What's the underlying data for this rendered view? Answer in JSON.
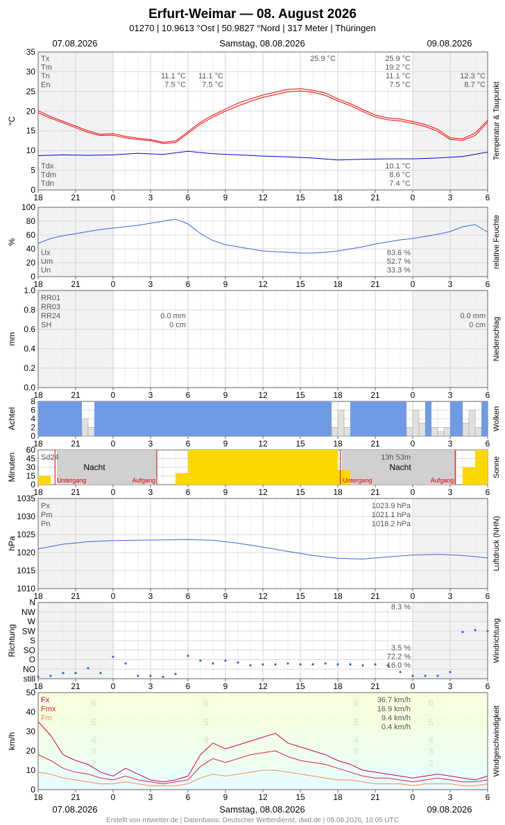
{
  "header": {
    "title": "Erfurt-Weimar  —  08. August 2026",
    "subtitle": "01270  |  10.9613 °Ost  |  50.9827 °Nord  |  317 Meter  |  Thüringen",
    "date_prev": "07.08.2026",
    "date_main": "Samstag, 08.08.2026",
    "date_next": "09.08.2026"
  },
  "footer": "Erstellt von mtwetter.de | Datenbasis: Deutscher Wetterdienst, dwd.de | 09.08.2026, 10:05 UTC",
  "x_hours": [
    "18",
    "21",
    "0",
    "3",
    "6",
    "9",
    "12",
    "15",
    "18",
    "21",
    "0",
    "3",
    "6"
  ],
  "colors": {
    "frame": "#666666",
    "grid": "#dddddd",
    "night": "#f2f2f2",
    "temp": "#ee0000",
    "dew": "#0000cc",
    "humid": "#3366dd",
    "cloud": "#6f9be6",
    "sun": "#ffd700",
    "pressure": "#3366dd",
    "dir": "#3366dd",
    "fx": "#cc0066",
    "fmx": "#dd2244",
    "fm": "#ff8844"
  },
  "chart_data": [
    {
      "id": "temp",
      "type": "line",
      "ylabel": "°C",
      "side_label": "Temperatur & Taupunkt",
      "ylim": [
        0,
        35
      ],
      "yticks": [
        "0",
        "5",
        "10",
        "15",
        "20",
        "25",
        "30",
        "35"
      ],
      "series": [
        {
          "name": "Tx",
          "x": [
            18,
            19,
            20,
            21,
            22,
            23,
            24,
            25,
            26,
            27,
            28,
            29,
            30,
            31,
            32,
            33,
            34,
            35,
            36,
            37,
            38,
            39,
            40,
            41,
            42,
            43,
            44,
            45,
            46,
            47,
            48,
            49,
            50,
            51,
            52,
            53,
            54
          ],
          "values": [
            20.1,
            18.6,
            17.4,
            16.2,
            15.0,
            14.1,
            14.3,
            13.6,
            13.1,
            12.8,
            12.1,
            12.4,
            14.8,
            17.2,
            19.0,
            20.5,
            22.0,
            23.1,
            24.1,
            24.8,
            25.5,
            25.7,
            25.3,
            24.6,
            23.1,
            21.9,
            20.4,
            19.0,
            18.3,
            18.0,
            17.4,
            16.6,
            15.4,
            13.2,
            13.0,
            14.4,
            17.7
          ]
        },
        {
          "name": "Tm",
          "x": [
            18,
            19,
            20,
            21,
            22,
            23,
            24,
            25,
            26,
            27,
            28,
            29,
            30,
            31,
            32,
            33,
            34,
            35,
            36,
            37,
            38,
            39,
            40,
            41,
            42,
            43,
            44,
            45,
            46,
            47,
            48,
            49,
            50,
            51,
            52,
            53,
            54
          ],
          "values": [
            19.6,
            18.2,
            17.0,
            15.8,
            14.6,
            13.8,
            13.9,
            13.2,
            12.8,
            12.5,
            11.8,
            12.0,
            14.4,
            16.7,
            18.5,
            20.0,
            21.3,
            22.5,
            23.5,
            24.2,
            24.9,
            25.1,
            24.8,
            24.0,
            22.6,
            21.4,
            19.9,
            18.5,
            17.8,
            17.5,
            16.9,
            16.1,
            14.9,
            12.8,
            12.6,
            13.8,
            17.2
          ]
        }
      ],
      "dew_series": {
        "name": "Td",
        "x": [
          18,
          20,
          22,
          24,
          26,
          28,
          30,
          32,
          34,
          36,
          38,
          40,
          42,
          44,
          46,
          48,
          50,
          52,
          54
        ],
        "values": [
          8.7,
          8.9,
          8.8,
          8.9,
          9.3,
          9.0,
          9.8,
          9.2,
          8.9,
          8.6,
          8.4,
          8.1,
          7.6,
          7.8,
          7.9,
          7.9,
          8.1,
          8.5,
          9.6
        ]
      },
      "labels_top": [
        "Tx",
        "Tm",
        "Tn",
        "En"
      ],
      "labels_bottom": [
        "Tdx",
        "Tdm",
        "Tdn"
      ],
      "stat_top": [
        "25.9 °C",
        "19.2 °C",
        "11.1 °C",
        "7.5 °C"
      ],
      "stat_bottom": [
        "10.1 °C",
        "8.6 °C",
        "7.4 °C"
      ],
      "day1_tn": [
        "11.1 °C",
        "7.5 °C"
      ],
      "day1_en": [
        "11.1 °C",
        "7.5 °C"
      ],
      "day2": [
        "12.3 °C",
        "8.7 °C"
      ],
      "tx_label": "25.9 °C"
    },
    {
      "id": "humid",
      "type": "line",
      "ylabel": "%",
      "side_label": "relative Feuchte",
      "ylim": [
        0,
        100
      ],
      "yticks": [
        "0",
        "20",
        "40",
        "60",
        "80",
        "100"
      ],
      "series": [
        {
          "name": "U",
          "x": [
            18,
            19,
            20,
            21,
            22,
            23,
            24,
            25,
            26,
            27,
            28,
            29,
            30,
            31,
            32,
            33,
            34,
            35,
            36,
            37,
            38,
            39,
            40,
            41,
            42,
            43,
            44,
            45,
            46,
            47,
            48,
            49,
            50,
            51,
            52,
            53,
            54
          ],
          "values": [
            48,
            55,
            59,
            62,
            65,
            68,
            70,
            72,
            74,
            77,
            80,
            83,
            76,
            62,
            52,
            46,
            43,
            40,
            37,
            36,
            35,
            34,
            34,
            35,
            37,
            40,
            43,
            47,
            50,
            53,
            55,
            58,
            61,
            65,
            72,
            75,
            64
          ]
        }
      ],
      "labels": [
        "Ux",
        "Um",
        "Un"
      ],
      "stats": [
        "83.6 %",
        "52.7 %",
        "33.3 %"
      ]
    },
    {
      "id": "precip",
      "type": "line",
      "ylabel": "mm",
      "side_label": "Niederschlag",
      "ylim": [
        0,
        1.0
      ],
      "yticks": [
        "0.0",
        "0.2",
        "0.4",
        "0.6",
        "0.8",
        "1.0"
      ],
      "labels": [
        "RR01",
        "RR03",
        "RR24",
        "SH"
      ],
      "day1": [
        "0.0 mm",
        "0 cm"
      ],
      "day2": [
        "0.0 mm",
        "0 cm"
      ]
    },
    {
      "id": "cloud",
      "type": "bar",
      "ylabel": "Achtel",
      "side_label": "Wolken",
      "ylim": [
        0,
        8
      ],
      "yticks": [
        "0",
        "2",
        "4",
        "6",
        "8"
      ],
      "series": [
        {
          "name": "N",
          "x": [
            18,
            18.5,
            19,
            19.5,
            20,
            20.5,
            21,
            21.5,
            22,
            22.5,
            23,
            23.5,
            24,
            24.5,
            25,
            25.5,
            26,
            26.5,
            27,
            27.5,
            28,
            28.5,
            29,
            29.5,
            30,
            30.5,
            31,
            31.5,
            32,
            32.5,
            33,
            33.5,
            34,
            34.5,
            35,
            35.5,
            36,
            36.5,
            37,
            37.5,
            38,
            38.5,
            39,
            39.5,
            40,
            40.5,
            41,
            41.5,
            42,
            42.5,
            43,
            43.5,
            44,
            44.5,
            45,
            45.5,
            46,
            46.5,
            47,
            47.5,
            48,
            48.5,
            49,
            49.5,
            50,
            50.5,
            51,
            51.5,
            52,
            52.5,
            53,
            53.5
          ],
          "values": [
            8,
            8,
            8,
            8,
            8,
            8,
            8,
            4,
            2,
            8,
            8,
            8,
            8,
            8,
            8,
            8,
            8,
            8,
            8,
            8,
            8,
            8,
            8,
            8,
            8,
            8,
            8,
            8,
            8,
            8,
            8,
            8,
            8,
            8,
            8,
            8,
            8,
            8,
            8,
            8,
            8,
            8,
            8,
            8,
            8,
            8,
            8,
            2,
            6,
            2,
            8,
            8,
            8,
            8,
            8,
            8,
            8,
            8,
            8,
            2,
            6,
            3,
            8,
            2,
            1,
            2,
            8,
            8,
            3,
            6,
            2,
            8
          ]
        }
      ]
    },
    {
      "id": "sun",
      "type": "bar",
      "ylabel": "Minuten",
      "side_label": "Sonne",
      "ylim": [
        0,
        60
      ],
      "yticks": [
        "0",
        "15",
        "30",
        "45",
        "60"
      ],
      "series": [
        {
          "name": "SD",
          "x": [
            18,
            19,
            20,
            21,
            22,
            23,
            24,
            25,
            26,
            27,
            28,
            29,
            30,
            31,
            32,
            33,
            34,
            35,
            36,
            37,
            38,
            39,
            40,
            41,
            42,
            43,
            44,
            45,
            46,
            47,
            48,
            49,
            50,
            51,
            52,
            53
          ],
          "values": [
            15,
            0,
            0,
            0,
            0,
            0,
            0,
            0,
            0,
            0,
            0,
            20,
            60,
            60,
            60,
            60,
            60,
            60,
            60,
            60,
            60,
            60,
            60,
            60,
            25,
            0,
            0,
            0,
            0,
            0,
            0,
            0,
            0,
            0,
            30,
            60
          ]
        }
      ],
      "sd_label": "Sd24",
      "sd_total": "13h 53m",
      "night": "Nacht",
      "sunset": "Untergang",
      "sunrise": "Aufgang"
    },
    {
      "id": "pressure",
      "type": "line",
      "ylabel": "hPa",
      "side_label": "Luftdruck (NHN)",
      "ylim": [
        1010,
        1035
      ],
      "yticks": [
        "1010",
        "1015",
        "1020",
        "1025",
        "1030",
        "1035"
      ],
      "series": [
        {
          "name": "P",
          "x": [
            18,
            20,
            22,
            24,
            26,
            28,
            30,
            32,
            34,
            36,
            38,
            40,
            42,
            44,
            46,
            48,
            50,
            52,
            54
          ],
          "values": [
            1021.0,
            1022.3,
            1023.0,
            1023.3,
            1023.4,
            1023.5,
            1023.6,
            1023.4,
            1022.6,
            1021.5,
            1020.3,
            1019.2,
            1018.4,
            1018.2,
            1018.8,
            1019.3,
            1019.5,
            1019.2,
            1018.5
          ]
        }
      ],
      "labels": [
        "Px",
        "Pm",
        "Pn"
      ],
      "stats": [
        "1023.9 hPa",
        "1021.1 hPa",
        "1018.2 hPa"
      ]
    },
    {
      "id": "winddir",
      "type": "scatter",
      "ylabel": "Richtung",
      "side_label": "Windrichtung",
      "yticks": [
        "still",
        "NO",
        "O",
        "SO",
        "S",
        "SW",
        "W",
        "NW",
        "N"
      ],
      "series": [
        {
          "name": "DD",
          "x": [
            18,
            19,
            20,
            21,
            22,
            23,
            24,
            25,
            26,
            27,
            28,
            29,
            30,
            31,
            32,
            33,
            34,
            35,
            36,
            37,
            38,
            39,
            40,
            41,
            42,
            43,
            44,
            45,
            46,
            47,
            48,
            49,
            50,
            51,
            52,
            53,
            54
          ],
          "values": [
            0.2,
            0.3,
            0.6,
            0.6,
            1.1,
            0.6,
            2.3,
            1.6,
            0.3,
            0.3,
            0.2,
            0.5,
            2.4,
            1.9,
            1.6,
            1.9,
            1.7,
            1.4,
            1.5,
            1.5,
            1.6,
            1.5,
            1.5,
            1.6,
            1.5,
            1.5,
            1.4,
            1.5,
            1.4,
            0.7,
            0.3,
            0.3,
            0.3,
            0.7,
            4.9,
            5.1,
            5.0
          ]
        }
      ],
      "stats": [
        "8.3 %",
        "3.5 %",
        "72.2 %",
        "16.0 %"
      ]
    },
    {
      "id": "windspeed",
      "type": "line",
      "ylabel": "km/h",
      "side_label": "Windgeschwindigkeit",
      "ylim": [
        0,
        50
      ],
      "yticks": [
        "0",
        "10",
        "20",
        "30",
        "40",
        "50"
      ],
      "series": [
        {
          "name": "Fx",
          "x": [
            18,
            19,
            20,
            21,
            22,
            23,
            24,
            25,
            26,
            27,
            28,
            29,
            30,
            31,
            32,
            33,
            34,
            35,
            36,
            37,
            38,
            39,
            40,
            41,
            42,
            43,
            44,
            45,
            46,
            47,
            48,
            49,
            50,
            51,
            52,
            53,
            54
          ],
          "values": [
            35,
            28,
            18,
            15,
            13,
            9,
            7,
            11,
            8,
            5,
            4,
            5,
            7,
            18,
            24,
            21,
            23,
            25,
            27,
            29,
            24,
            22,
            20,
            18,
            15,
            13,
            10,
            9,
            8,
            7,
            6,
            7,
            8,
            7,
            6,
            5,
            7
          ]
        },
        {
          "name": "Fmx",
          "x": [
            18,
            19,
            20,
            21,
            22,
            23,
            24,
            25,
            26,
            27,
            28,
            29,
            30,
            31,
            32,
            33,
            34,
            35,
            36,
            37,
            38,
            39,
            40,
            41,
            42,
            43,
            44,
            45,
            46,
            47,
            48,
            49,
            50,
            51,
            52,
            53,
            54
          ],
          "values": [
            18,
            15,
            11,
            9,
            8,
            6,
            5,
            7,
            5,
            4,
            3,
            4,
            5,
            12,
            16,
            14,
            16,
            18,
            19,
            20,
            17,
            15,
            14,
            13,
            11,
            9,
            7,
            6,
            6,
            5,
            4,
            5,
            6,
            5,
            4,
            4,
            5
          ]
        },
        {
          "name": "Fm",
          "x": [
            18,
            19,
            20,
            21,
            22,
            23,
            24,
            25,
            26,
            27,
            28,
            29,
            30,
            31,
            32,
            33,
            34,
            35,
            36,
            37,
            38,
            39,
            40,
            41,
            42,
            43,
            44,
            45,
            46,
            47,
            48,
            49,
            50,
            51,
            52,
            53,
            54
          ],
          "values": [
            9,
            8,
            6,
            5,
            4,
            3,
            3,
            4,
            3,
            2,
            2,
            2,
            3,
            6,
            8,
            7,
            8,
            9,
            10,
            10,
            9,
            8,
            7,
            6,
            5,
            5,
            4,
            3,
            3,
            3,
            2,
            3,
            3,
            3,
            2,
            2,
            3
          ]
        }
      ],
      "labels": [
        "Fx",
        "Fmx",
        "Fm"
      ],
      "stats": [
        "36.7 km/h",
        "16.9 km/h",
        "9.4 km/h",
        "0.4 km/h"
      ],
      "bft": [
        "2",
        "3",
        "4",
        "5",
        "6"
      ]
    }
  ]
}
